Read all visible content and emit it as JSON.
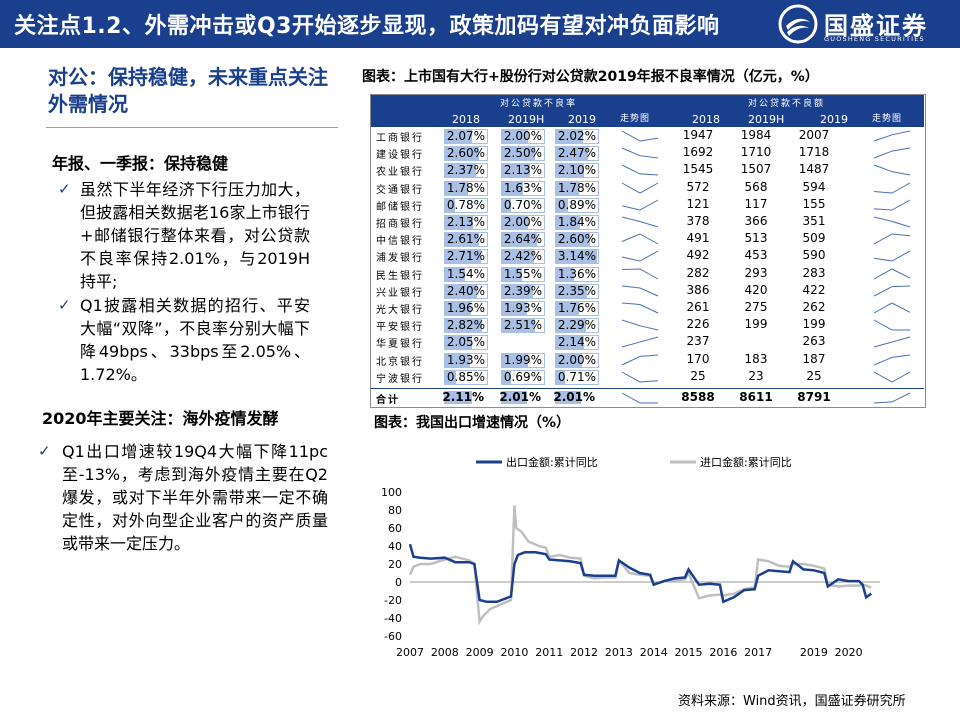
{
  "header": {
    "title": "关注点1.2、外需冲击或Q3开始逐步显现，政策加码有望对冲负面影响",
    "logo_cn": "国盛证券",
    "logo_en": "GUOSHENG SECURITIES"
  },
  "left": {
    "title": "对公：保持稳健，未来重点关注外需情况",
    "sub1": "年报、一季报：保持稳健",
    "bullet1": "虽然下半年经济下行压力加大，但披露相关数据老16家上市银行+邮储银行整体来看，对公贷款不良率保持2.01%，与2019H持平;",
    "bullet2": "Q1披露相关数据的招行、平安大幅“双降”，不良率分别大幅下降49bps、33bps至2.05%、1.72%。",
    "sub2": "2020年主要关注：海外疫情发酵",
    "bullet3": "Q1出口增速较19Q4大幅下降11pc至-13%，考虑到海外疫情主要在Q2爆发，或对下半年外需带来一定不确定性，对外向型企业客户的资产质量或带来一定压力。"
  },
  "table": {
    "title": "图表：上市国有大行+股份行对公贷款2019年报不良率情况（亿元，%）",
    "group1": "对公贷款不良率",
    "group2": "对公贷款不良额",
    "years": [
      "2018",
      "2019H",
      "2019"
    ],
    "trend_label": "走势图",
    "rows": [
      {
        "bank": "工商银行",
        "r": [
          "2.07%",
          "2.00%",
          "2.02%"
        ],
        "v": [
          "1947",
          "1984",
          "2007"
        ]
      },
      {
        "bank": "建设银行",
        "r": [
          "2.60%",
          "2.50%",
          "2.47%"
        ],
        "v": [
          "1692",
          "1710",
          "1718"
        ]
      },
      {
        "bank": "农业银行",
        "r": [
          "2.37%",
          "2.13%",
          "2.10%"
        ],
        "v": [
          "1545",
          "1507",
          "1487"
        ]
      },
      {
        "bank": "交通银行",
        "r": [
          "1.78%",
          "1.63%",
          "1.78%"
        ],
        "v": [
          "572",
          "568",
          "594"
        ]
      },
      {
        "bank": "邮储银行",
        "r": [
          "0.78%",
          "0.70%",
          "0.89%"
        ],
        "v": [
          "121",
          "117",
          "155"
        ]
      },
      {
        "bank": "招商银行",
        "r": [
          "2.13%",
          "2.00%",
          "1.84%"
        ],
        "v": [
          "378",
          "366",
          "351"
        ]
      },
      {
        "bank": "中信银行",
        "r": [
          "2.61%",
          "2.64%",
          "2.60%"
        ],
        "v": [
          "491",
          "513",
          "509"
        ]
      },
      {
        "bank": "浦发银行",
        "r": [
          "2.71%",
          "2.42%",
          "3.14%"
        ],
        "v": [
          "492",
          "453",
          "590"
        ]
      },
      {
        "bank": "民生银行",
        "r": [
          "1.54%",
          "1.55%",
          "1.36%"
        ],
        "v": [
          "282",
          "293",
          "283"
        ]
      },
      {
        "bank": "兴业银行",
        "r": [
          "2.40%",
          "2.39%",
          "2.35%"
        ],
        "v": [
          "386",
          "420",
          "422"
        ]
      },
      {
        "bank": "光大银行",
        "r": [
          "1.96%",
          "1.93%",
          "1.76%"
        ],
        "v": [
          "261",
          "275",
          "262"
        ]
      },
      {
        "bank": "平安银行",
        "r": [
          "2.82%",
          "2.51%",
          "2.29%"
        ],
        "v": [
          "226",
          "199",
          "199"
        ]
      },
      {
        "bank": "华夏银行",
        "r": [
          "2.05%",
          "",
          "2.14%"
        ],
        "v": [
          "237",
          "",
          "263"
        ]
      },
      {
        "bank": "北京银行",
        "r": [
          "1.93%",
          "1.99%",
          "2.00%"
        ],
        "v": [
          "170",
          "183",
          "187"
        ]
      },
      {
        "bank": "宁波银行",
        "r": [
          "0.85%",
          "0.69%",
          "0.71%"
        ],
        "v": [
          "25",
          "23",
          "25"
        ]
      }
    ],
    "total": {
      "bank": "合计",
      "r": [
        "2.11%",
        "2.01%",
        "2.01%"
      ],
      "v": [
        "8588",
        "8611",
        "8791"
      ]
    }
  },
  "chart_title": "图表：我国出口增速情况（%）",
  "chart_data": {
    "type": "line",
    "title": "图表：我国出口增速情况（%）",
    "ylim": [
      -60,
      100
    ],
    "yticks": [
      100,
      80,
      60,
      40,
      20,
      0,
      -20,
      -40,
      -60
    ],
    "xticks": [
      "2007",
      "2008",
      "2009",
      "2010",
      "2011",
      "2012",
      "2013",
      "2014",
      "2015",
      "2016",
      "2017",
      "2019",
      "2020"
    ],
    "series": [
      {
        "name": "出口金额:累计同比",
        "color": "#1a3f8c",
        "x": [
          2007.0,
          2007.1,
          2007.3,
          2007.6,
          2008.0,
          2008.3,
          2008.7,
          2008.85,
          2009.0,
          2009.2,
          2009.5,
          2009.9,
          2010.0,
          2010.1,
          2010.3,
          2010.6,
          2010.9,
          2011.0,
          2011.3,
          2011.6,
          2011.9,
          2012.0,
          2012.3,
          2012.6,
          2012.9,
          2013.0,
          2013.3,
          2013.6,
          2013.9,
          2014.0,
          2014.3,
          2014.6,
          2014.9,
          2015.0,
          2015.3,
          2015.6,
          2015.9,
          2016.0,
          2016.3,
          2016.6,
          2016.9,
          2017.0,
          2017.3,
          2017.6,
          2017.9,
          2018.0,
          2018.3,
          2018.6,
          2018.9,
          2019.0,
          2019.3,
          2019.6,
          2019.9,
          2020.0,
          2020.1,
          2020.25
        ],
        "y": [
          42,
          28,
          27,
          26,
          27,
          22,
          22,
          20,
          -20,
          -22,
          -22,
          -16,
          20,
          30,
          33,
          33,
          31,
          25,
          24,
          23,
          21,
          8,
          7,
          7,
          7,
          24,
          16,
          10,
          8,
          -3,
          1,
          4,
          5,
          14,
          -3,
          -2,
          -3,
          -22,
          -17,
          -9,
          -8,
          7,
          13,
          12,
          11,
          23,
          14,
          13,
          10,
          -5,
          3,
          1,
          1,
          -3,
          -17,
          -13
        ]
      },
      {
        "name": "进口金额:累计同比",
        "color": "#bfbfbf",
        "x": [
          2007.0,
          2007.1,
          2007.3,
          2007.6,
          2008.0,
          2008.3,
          2008.7,
          2008.85,
          2009.0,
          2009.1,
          2009.3,
          2009.6,
          2009.9,
          2010.0,
          2010.05,
          2010.2,
          2010.4,
          2010.7,
          2010.9,
          2011.0,
          2011.3,
          2011.6,
          2011.9,
          2012.0,
          2012.3,
          2012.6,
          2012.9,
          2013.0,
          2013.3,
          2013.6,
          2013.9,
          2014.0,
          2014.3,
          2014.6,
          2014.9,
          2015.0,
          2015.3,
          2015.6,
          2015.9,
          2016.0,
          2016.3,
          2016.6,
          2016.9,
          2017.0,
          2017.3,
          2017.6,
          2017.9,
          2018.0,
          2018.3,
          2018.6,
          2018.9,
          2019.0,
          2019.3,
          2019.6,
          2019.9,
          2020.0,
          2020.1,
          2020.25
        ],
        "y": [
          8,
          17,
          20,
          20,
          25,
          28,
          24,
          20,
          -44,
          -38,
          -30,
          -25,
          -20,
          85,
          60,
          56,
          45,
          40,
          38,
          28,
          30,
          27,
          26,
          7,
          4,
          5,
          5,
          24,
          10,
          8,
          7,
          -3,
          1,
          2,
          3,
          10,
          -18,
          -15,
          -14,
          -15,
          -13,
          -8,
          -6,
          25,
          23,
          18,
          17,
          20,
          20,
          18,
          15,
          -3,
          -5,
          -4,
          -4,
          -3,
          -4,
          -6
        ]
      }
    ]
  },
  "source": "资料来源：Wind资讯，国盛证券研究所"
}
